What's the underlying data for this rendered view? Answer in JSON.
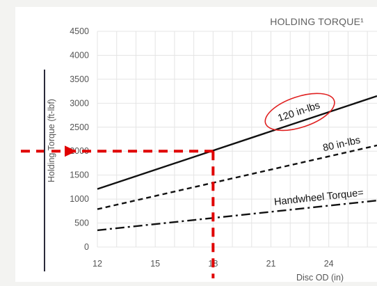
{
  "chart_data": {
    "type": "line",
    "title": "HOLDING TORQUE¹",
    "xlabel": "Disc OD (in)",
    "ylabel": "Holding Torque (ft-lbf)",
    "xlim": [
      12,
      26.5
    ],
    "ylim": [
      0,
      4500
    ],
    "x_ticks": [
      12,
      15,
      18,
      21,
      24
    ],
    "y_ticks": [
      0,
      500,
      1000,
      1500,
      2000,
      2500,
      3000,
      3500,
      4000,
      4500
    ],
    "grid": true,
    "series": [
      {
        "name": "120 in-lbs",
        "style": "solid",
        "color": "#111111",
        "x": [
          12,
          26.5
        ],
        "y": [
          1210,
          3150
        ]
      },
      {
        "name": "80 in-lbs",
        "style": "dashed",
        "color": "#111111",
        "x": [
          12,
          26.5
        ],
        "y": [
          790,
          2120
        ]
      },
      {
        "name": "Handwheel Torque=",
        "style": "dashdot",
        "color": "#111111",
        "x": [
          12,
          26.5
        ],
        "y": [
          350,
          970
        ]
      }
    ],
    "annotations": {
      "highlight_label": "120 in-lbs",
      "highlight_color": "#e02020",
      "reference_x": 18,
      "reference_y": 2000,
      "reference_color": "#e00000"
    }
  }
}
